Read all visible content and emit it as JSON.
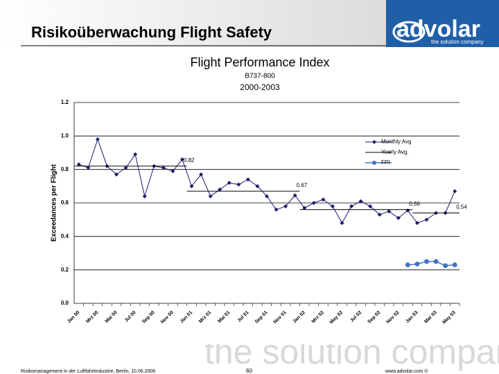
{
  "slide": {
    "title": "Risikoüberwachung Flight Safety",
    "logo": "advolar",
    "logo_tagline": "the solution company",
    "watermark": "the solution company",
    "footer_left": "Risikomanagement in der Luftfahrtindustrie, Berlin, 10.06.2006",
    "page_number": "60",
    "footer_right": "www.advolar.com ©"
  },
  "chart_data": {
    "type": "line",
    "title": "Flight Performance Index",
    "subtitle": "B737-800",
    "subtitle2": "2000-2003",
    "y_label": "Exceedances per Flight",
    "categories": [
      "Jan 00",
      null,
      "Mrz 00",
      null,
      "Mai 00",
      null,
      "Jul 00",
      null,
      "Sep 00",
      null,
      "Nov 00",
      null,
      "Jan 01",
      null,
      "Mrz 01",
      null,
      "Mai 01",
      null,
      "Jul 01",
      null,
      "Sep 01",
      null,
      "Nov 01",
      null,
      "Jan 02",
      null,
      "Mrz 02",
      null,
      "May 02",
      null,
      "Jul 02",
      null,
      "Sep 02",
      null,
      "Nov 02",
      null,
      "Jan 03",
      null,
      "Mar 03",
      null,
      "May 03"
    ],
    "series": [
      {
        "name": "Monthly Avg",
        "color": "#1a1a6e",
        "values": [
          0.83,
          0.81,
          0.98,
          0.82,
          0.77,
          0.81,
          0.89,
          0.64,
          0.82,
          0.81,
          0.79,
          0.86,
          0.7,
          0.77,
          0.64,
          0.68,
          0.72,
          0.71,
          0.74,
          0.7,
          0.64,
          0.56,
          0.58,
          0.645,
          0.57,
          0.6,
          0.62,
          0.58,
          0.48,
          0.58,
          0.61,
          0.58,
          0.53,
          0.55,
          0.51,
          0.555,
          0.48,
          0.5,
          0.54,
          0.54,
          0.67
        ]
      },
      {
        "name": "Yearly Avg.",
        "color": "#000000",
        "values": [
          0.82,
          0.82,
          0.82,
          0.82,
          0.82,
          0.82,
          0.82,
          0.82,
          0.82,
          0.82,
          0.82,
          0.82,
          0.67,
          0.67,
          0.67,
          0.67,
          0.67,
          0.67,
          0.67,
          0.67,
          0.67,
          0.67,
          0.67,
          0.67,
          0.56,
          0.56,
          0.56,
          0.56,
          0.56,
          0.56,
          0.56,
          0.56,
          0.56,
          0.56,
          0.56,
          0.56,
          0.54,
          0.54,
          0.54,
          0.54,
          0.54
        ],
        "value_labels": [
          null,
          null,
          null,
          null,
          null,
          null,
          null,
          null,
          null,
          null,
          null,
          "0.82",
          null,
          null,
          null,
          null,
          null,
          null,
          null,
          null,
          null,
          null,
          null,
          "0.67",
          null,
          null,
          null,
          null,
          null,
          null,
          null,
          null,
          null,
          null,
          null,
          "0,56",
          null,
          null,
          null,
          null,
          "0,54"
        ]
      },
      {
        "name": "FPI",
        "color": "#4472c4",
        "values": [
          null,
          null,
          null,
          null,
          null,
          null,
          null,
          null,
          null,
          null,
          null,
          null,
          null,
          null,
          null,
          null,
          null,
          null,
          null,
          null,
          null,
          null,
          null,
          null,
          null,
          null,
          null,
          null,
          null,
          null,
          null,
          null,
          null,
          null,
          null,
          0.23,
          0.235,
          0.25,
          0.25,
          0.225,
          0.23
        ]
      }
    ],
    "ylim": [
      0,
      1.2
    ],
    "yticks": [
      {
        "value": 0,
        "label": "0.0"
      },
      0.2,
      0.4,
      0.6,
      0.8,
      {
        "value": 1,
        "label": "1.0"
      },
      1.2
    ],
    "grid": true
  }
}
